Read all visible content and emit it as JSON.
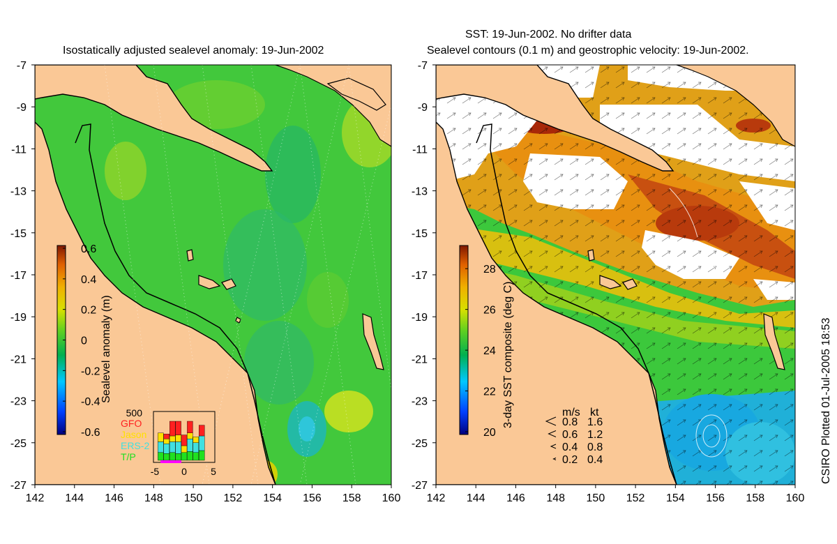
{
  "left_map": {
    "title": "Isostatically adjusted sealevel anomaly: 19-Jun-2002",
    "colorbar": {
      "label": "Sealevel anomaly (m)",
      "ticks": [
        "0.6",
        "0.4",
        "0.2",
        "0",
        "-0.2",
        "-0.4",
        "-0.6"
      ],
      "range": [
        -0.6,
        0.6
      ]
    },
    "inset": {
      "scale_label": "500",
      "legend": [
        {
          "label": "GFO",
          "color": "#ff2020"
        },
        {
          "label": "Jason",
          "color": "#ffe000"
        },
        {
          "label": "ERS-2",
          "color": "#40e0e0"
        },
        {
          "label": "T/P",
          "color": "#20e020"
        }
      ],
      "x_ticks": [
        "-5",
        "0",
        "5"
      ],
      "bars": [
        {
          "day": -4,
          "tp": 0.16,
          "ers": 0.22,
          "jason": 0.18,
          "gfo": 0.0
        },
        {
          "day": -3,
          "tp": 0.14,
          "ers": 0.2,
          "jason": 0.1,
          "gfo": 0.1
        },
        {
          "day": -2,
          "tp": 0.16,
          "ers": 0.22,
          "jason": 0.12,
          "gfo": 0.3
        },
        {
          "day": -1,
          "tp": 0.14,
          "ers": 0.24,
          "jason": 0.14,
          "gfo": 0.28
        },
        {
          "day": 0,
          "tp": 0.16,
          "ers": 0.0,
          "jason": 0.14,
          "gfo": 0.22
        },
        {
          "day": 1,
          "tp": 0.18,
          "ers": 0.26,
          "jason": 0.12,
          "gfo": 0.24
        },
        {
          "day": 2,
          "tp": 0.16,
          "ers": 0.2,
          "jason": 0.12,
          "gfo": 0.0
        },
        {
          "day": 3,
          "tp": 0.2,
          "ers": 0.3,
          "jason": 0.0,
          "gfo": 0.22
        }
      ]
    }
  },
  "right_map": {
    "title_line1": "SST: 19-Jun-2002. No drifter data",
    "title_line2": "Sealevel contours (0.1 m) and geostrophic velocity: 19-Jun-2002.",
    "colorbar": {
      "label": "3-day SST composite (deg C)",
      "ticks": [
        "28",
        "26",
        "24",
        "22",
        "20"
      ],
      "range": [
        20,
        29
      ]
    },
    "velocity_legend": {
      "header_ms": "m/s",
      "header_kt": "kt",
      "rows": [
        {
          "ms": "0.8",
          "kt": "1.6"
        },
        {
          "ms": "0.6",
          "kt": "1.2"
        },
        {
          "ms": "0.4",
          "kt": "0.8"
        },
        {
          "ms": "0.2",
          "kt": "0.4"
        }
      ]
    }
  },
  "axes": {
    "x_ticks": [
      "142",
      "144",
      "146",
      "148",
      "150",
      "152",
      "154",
      "156",
      "158",
      "160"
    ],
    "y_ticks": [
      "-7",
      "-9",
      "-11",
      "-13",
      "-15",
      "-17",
      "-19",
      "-21",
      "-23",
      "-25",
      "-27"
    ],
    "lon_range": [
      142,
      160
    ],
    "lat_range": [
      -27,
      -7
    ]
  },
  "credit": "CSIRO Plotted 01-Jul-2005 18:53",
  "colors": {
    "land": "#fac896",
    "ocean_green": "#3cc83c",
    "cloud": "#ffffff"
  }
}
